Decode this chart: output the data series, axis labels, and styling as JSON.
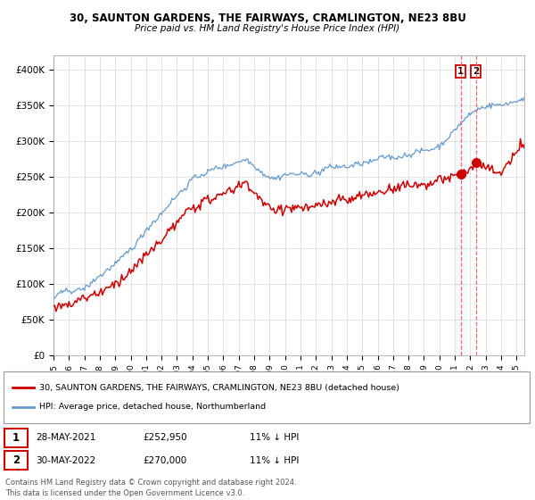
{
  "title1": "30, SAUNTON GARDENS, THE FAIRWAYS, CRAMLINGTON, NE23 8BU",
  "title2": "Price paid vs. HM Land Registry's House Price Index (HPI)",
  "legend_label_red": "30, SAUNTON GARDENS, THE FAIRWAYS, CRAMLINGTON, NE23 8BU (detached house)",
  "legend_label_blue": "HPI: Average price, detached house, Northumberland",
  "note1": "Contains HM Land Registry data © Crown copyright and database right 2024.",
  "note2": "This data is licensed under the Open Government Licence v3.0.",
  "sale1_date": "28-MAY-2021",
  "sale1_price": "£252,950",
  "sale1_hpi": "11% ↓ HPI",
  "sale2_date": "30-MAY-2022",
  "sale2_price": "£270,000",
  "sale2_hpi": "11% ↓ HPI",
  "sale1_value": 252950,
  "sale2_value": 270000,
  "sale1_t": 2021.375,
  "sale2_t": 2022.375,
  "red_color": "#cc0000",
  "blue_color": "#6699cc",
  "vline_color": "#ff6666",
  "vband_color": "#ddeeff",
  "box_color": "#cc0000",
  "ylim": [
    0,
    420000
  ],
  "yticks": [
    0,
    50000,
    100000,
    150000,
    200000,
    250000,
    300000,
    350000,
    400000
  ],
  "ytick_labels": [
    "£0",
    "£50K",
    "£100K",
    "£150K",
    "£200K",
    "£250K",
    "£300K",
    "£350K",
    "£400K"
  ],
  "xstart": 1995.0,
  "xend": 2025.5
}
